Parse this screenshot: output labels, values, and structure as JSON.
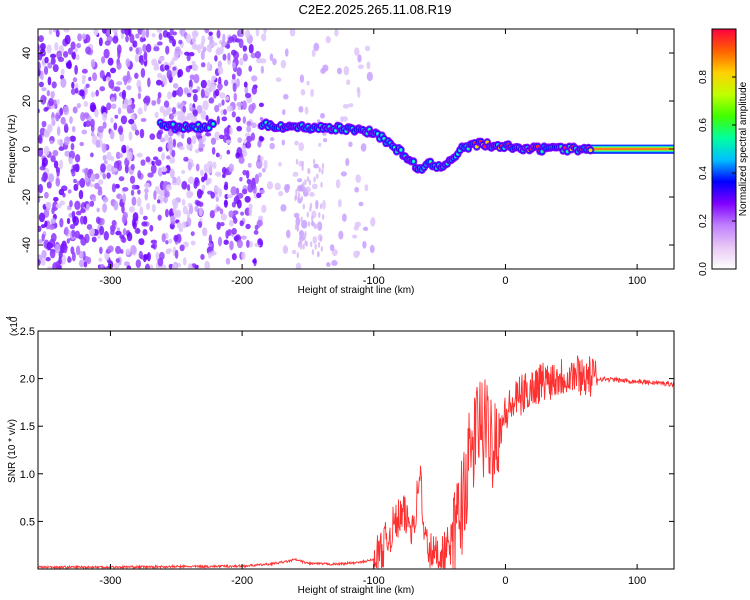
{
  "title": "C2E2.2025.265.11.08.R19",
  "chart_data": [
    {
      "type": "heatmap",
      "xlabel": "Height of straight line (km)",
      "ylabel": "Frequency (Hz)",
      "xlim": [
        -355,
        128
      ],
      "ylim": [
        -50,
        50
      ],
      "xticks": [
        -300,
        -200,
        -100,
        0,
        100
      ],
      "yticks": [
        -40,
        -20,
        0,
        20,
        40
      ],
      "colorbar": {
        "label": "Normalized spectral amplitude",
        "range": [
          0,
          1
        ],
        "ticks": [
          0.0,
          0.2,
          0.4,
          0.6,
          0.8
        ],
        "colors": [
          "#ffffff",
          "#e8c8f4",
          "#c080ff",
          "#8000ff",
          "#0000ff",
          "#00c0ff",
          "#00ffa0",
          "#40ff00",
          "#c0ff00",
          "#ffd000",
          "#ff6000",
          "#ff0040"
        ]
      },
      "trace": {
        "x": [
          -262,
          -250,
          -240,
          -230,
          -222,
          -185,
          -170,
          -155,
          -140,
          -125,
          -110,
          -100,
          -92,
          -85,
          -78,
          -70,
          -64,
          -57,
          -50,
          -44,
          -38,
          -34,
          -28,
          -20,
          -10,
          0,
          10,
          20,
          40,
          65,
          128
        ],
        "y": [
          10,
          9,
          9,
          9,
          10,
          10,
          9.5,
          9,
          9,
          8.5,
          8,
          7,
          4,
          1,
          -2,
          -6,
          -9,
          -6,
          -8,
          -5,
          -3,
          0,
          1,
          2,
          1.5,
          1,
          0.5,
          0,
          0,
          0,
          0
        ]
      }
    },
    {
      "type": "line",
      "xlabel": "Height of straight line (km)",
      "ylabel": "SNR (10 * v/v)",
      "yscale_label": "(x10",
      "yscale_exp": "4",
      "xlim": [
        -355,
        128
      ],
      "ylim": [
        0,
        2.5
      ],
      "xticks": [
        -300,
        -200,
        -100,
        0,
        100
      ],
      "yticks": [
        0.5,
        1.0,
        1.5,
        2.0,
        2.5
      ],
      "series": [
        {
          "color": "#ff3030",
          "x": [
            -355,
            -300,
            -250,
            -200,
            -180,
            -165,
            -160,
            -150,
            -130,
            -110,
            -100,
            -95,
            -90,
            -85,
            -80,
            -76,
            -72,
            -68,
            -65,
            -62,
            -58,
            -54,
            -50,
            -46,
            -42,
            -38,
            -34,
            -30,
            -26,
            -23,
            -20,
            -18,
            -16,
            -14,
            -12,
            -10,
            -6,
            -2,
            0,
            5,
            10,
            15,
            20,
            25,
            30,
            35,
            40,
            45,
            50,
            55,
            60,
            70,
            80,
            90,
            100,
            110,
            120,
            128
          ],
          "y": [
            0.02,
            0.02,
            0.025,
            0.03,
            0.05,
            0.08,
            0.1,
            0.06,
            0.05,
            0.07,
            0.1,
            0.18,
            0.3,
            0.45,
            0.55,
            0.55,
            0.45,
            0.6,
            1.1,
            0.35,
            0.2,
            0.15,
            0.15,
            0.2,
            0.25,
            0.35,
            0.6,
            0.95,
            1.2,
            1.4,
            1.55,
            1.5,
            1.45,
            1.45,
            1.4,
            1.4,
            1.45,
            1.55,
            1.62,
            1.72,
            1.8,
            1.85,
            1.9,
            1.95,
            1.98,
            2.0,
            2.02,
            2.03,
            2.04,
            2.05,
            2.03,
            2.0,
            1.99,
            1.98,
            1.97,
            1.96,
            1.95,
            1.94
          ]
        }
      ]
    }
  ]
}
